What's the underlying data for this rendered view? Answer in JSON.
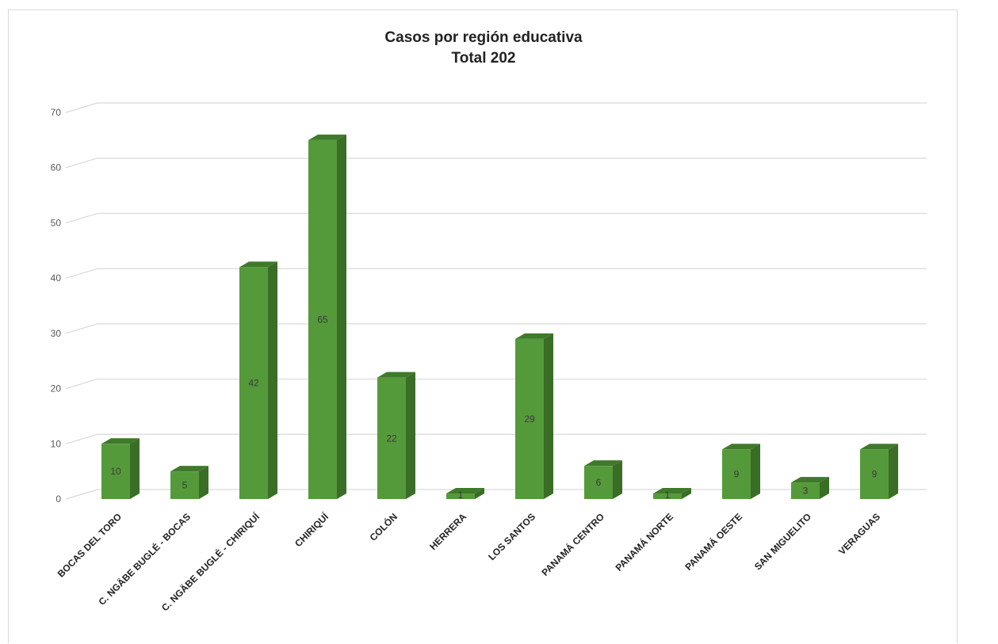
{
  "chart_data": {
    "type": "bar",
    "title": "Casos por región educativa",
    "subtitle": "Total 202",
    "xlabel": "",
    "ylabel": "",
    "ylim": [
      0,
      70
    ],
    "yticks": [
      0,
      10,
      20,
      30,
      40,
      50,
      60,
      70
    ],
    "grid": true,
    "legend": "none",
    "bar_color": "#559a3a",
    "bar_side_color": "#3a6d26",
    "bar_top_color": "#3f7a2b",
    "categories": [
      "BOCAS DEL TORO",
      "C. NGÄBE BUGLÉ - BOCAS",
      "C. NGÄBE BUGLÉ - CHIRIQUÍ",
      "CHIRIQUÍ",
      "COLÓN",
      "HERRERA",
      "LOS SANTOS",
      "PANAMÁ CENTRO",
      "PANAMÁ NORTE",
      "PANAMÁ OESTE",
      "SAN MIGUELITO",
      "VERAGUAS"
    ],
    "values": [
      10,
      5,
      42,
      65,
      22,
      1,
      29,
      6,
      1,
      9,
      3,
      9
    ]
  }
}
